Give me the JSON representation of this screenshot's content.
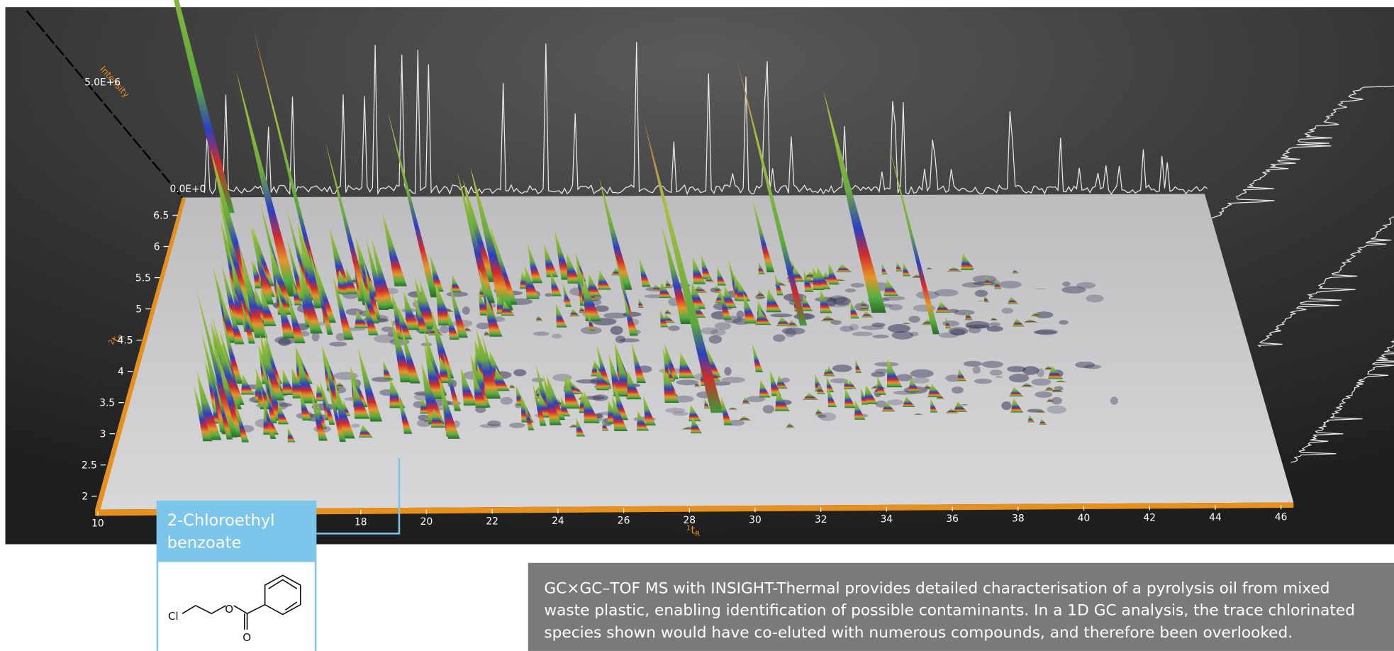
{
  "plot": {
    "intensity_axis": {
      "label": "Intensity",
      "ticks": [
        "5.0E+6",
        "0.0E+0"
      ]
    },
    "x_axis": {
      "label": {
        "sup": "1",
        "base": "t",
        "sub": "R"
      },
      "ticks": [
        10,
        18,
        20,
        22,
        24,
        26,
        28,
        30,
        32,
        34,
        36,
        38,
        40,
        42,
        44,
        46
      ]
    },
    "y_axis": {
      "label": {
        "sup": "2",
        "base": "t",
        "sub": "R"
      },
      "ticks": [
        2,
        2.5,
        3,
        3.5,
        4,
        4.5,
        5,
        5.5,
        6,
        6.5
      ]
    }
  },
  "callout": {
    "title_lines": [
      "2-Chloroethyl",
      "benzoate"
    ],
    "atoms": [
      "Cl",
      "O",
      "O"
    ]
  },
  "caption": {
    "lines": [
      "GC×GC–TOF MS with INSIGHT-Thermal provides detailed characterisation of a pyrolysis oil from mixed",
      "waste plastic, enabling identification of possible contaminants. In a 1D GC analysis, the trace chlorinated",
      "species shown would have co-eluted with numerous compounds, and therefore been overlooked."
    ]
  }
}
